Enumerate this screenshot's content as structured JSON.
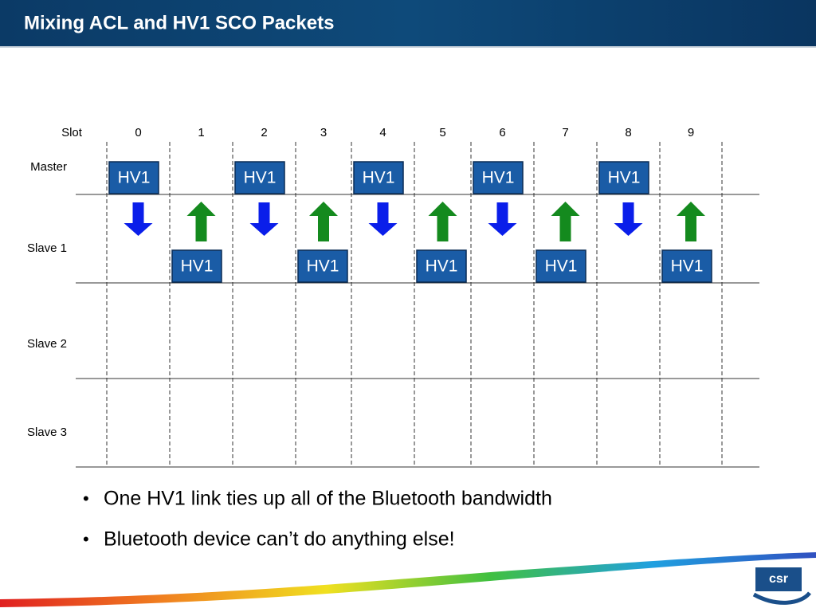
{
  "header": {
    "title": "Mixing ACL and HV1 SCO Packets"
  },
  "diagram": {
    "slot_label": "Slot",
    "slots": [
      "0",
      "1",
      "2",
      "3",
      "4",
      "5",
      "6",
      "7",
      "8",
      "9"
    ],
    "rows": [
      {
        "label": "Master",
        "packets": [
          "HV1",
          "HV1",
          "HV1",
          "HV1",
          "HV1"
        ]
      },
      {
        "label": "Slave 1",
        "packets": [
          "HV1",
          "HV1",
          "HV1",
          "HV1",
          "HV1"
        ]
      },
      {
        "label": "Slave 2",
        "packets": []
      },
      {
        "label": "Slave 3",
        "packets": []
      }
    ]
  },
  "bullets": [
    "One HV1 link ties up all of the Bluetooth bandwidth",
    "Bluetooth device can’t do anything else!"
  ],
  "logo": {
    "text": "csr"
  }
}
